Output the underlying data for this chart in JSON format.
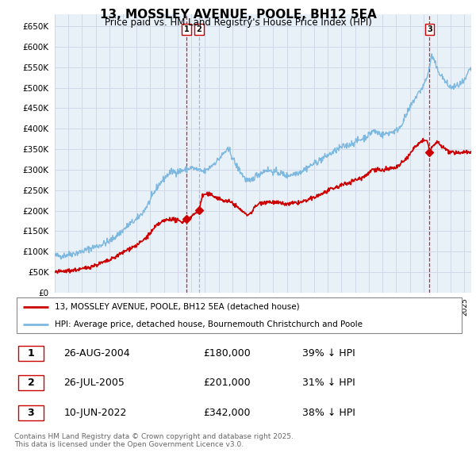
{
  "title": "13, MOSSLEY AVENUE, POOLE, BH12 5EA",
  "subtitle": "Price paid vs. HM Land Registry's House Price Index (HPI)",
  "ylim": [
    0,
    680000
  ],
  "yticks": [
    0,
    50000,
    100000,
    150000,
    200000,
    250000,
    300000,
    350000,
    400000,
    450000,
    500000,
    550000,
    600000,
    650000
  ],
  "xlim_start": 1995.0,
  "xlim_end": 2025.5,
  "sale_dates": [
    2004.65,
    2005.57,
    2022.44
  ],
  "sale_prices": [
    180000,
    201000,
    342000
  ],
  "sale_labels": [
    "1",
    "2",
    "3"
  ],
  "sale_label_dates_str": [
    "26-AUG-2004",
    "26-JUL-2005",
    "10-JUN-2022"
  ],
  "sale_label_prices_str": [
    "£180,000",
    "£201,000",
    "£342,000"
  ],
  "sale_label_pct_str": [
    "39% ↓ HPI",
    "31% ↓ HPI",
    "38% ↓ HPI"
  ],
  "sale_line_colors": [
    "#cc0000",
    "#8ab4d8",
    "#cc0000"
  ],
  "property_color": "#cc0000",
  "hpi_color": "#7db8e0",
  "legend_property": "13, MOSSLEY AVENUE, POOLE, BH12 5EA (detached house)",
  "legend_hpi": "HPI: Average price, detached house, Bournemouth Christchurch and Poole",
  "footer": "Contains HM Land Registry data © Crown copyright and database right 2025.\nThis data is licensed under the Open Government Licence v3.0.",
  "bg_color": "#ffffff",
  "grid_color": "#d0d8e8",
  "chart_bg": "#e8f0f8"
}
